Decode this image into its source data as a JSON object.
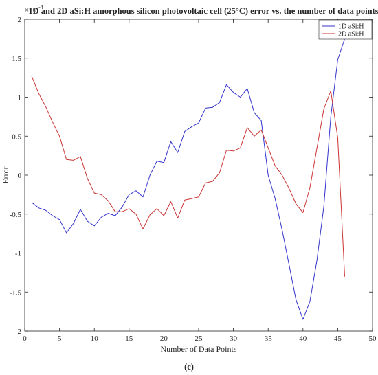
{
  "chart_data": {
    "type": "line",
    "title": "1D and 2D aSi:H amorphous silicon photovoltaic cell (25°C) error vs. the number of data points",
    "xlabel": "Number of Data Points",
    "ylabel": "Error",
    "y_multiplier_label": "×10",
    "y_multiplier_exponent": "-4",
    "xlim": [
      0,
      50
    ],
    "ylim": [
      -2,
      2
    ],
    "y_scale_factor": 0.0001,
    "xticks": [
      0,
      5,
      10,
      15,
      20,
      25,
      30,
      35,
      40,
      45,
      50
    ],
    "yticks": [
      -2,
      -1.5,
      -1,
      -0.5,
      0,
      0.5,
      1,
      1.5,
      2
    ],
    "xtick_labels": [
      "0",
      "5",
      "10",
      "15",
      "20",
      "25",
      "30",
      "35",
      "40",
      "45",
      "50"
    ],
    "ytick_labels": [
      "-2",
      "-1.5",
      "-1",
      "-0.5",
      "0",
      "0.5",
      "1",
      "1.5",
      "2"
    ],
    "grid": false,
    "legend_position": "top-right",
    "series": [
      {
        "name": "1D aSi:H",
        "color": "#3333cc",
        "x": [
          1,
          2,
          3,
          4,
          5,
          6,
          7,
          8,
          9,
          10,
          11,
          12,
          13,
          14,
          15,
          16,
          17,
          18,
          19,
          20,
          21,
          22,
          23,
          24,
          25,
          26,
          27,
          28,
          29,
          30,
          31,
          32,
          33,
          34,
          35,
          36,
          37,
          38,
          39,
          40,
          41,
          42,
          43,
          44,
          45,
          46
        ],
        "values": [
          -0.35,
          -0.42,
          -0.45,
          -0.52,
          -0.57,
          -0.74,
          -0.62,
          -0.44,
          -0.59,
          -0.65,
          -0.54,
          -0.49,
          -0.52,
          -0.41,
          -0.25,
          -0.2,
          -0.28,
          0.0,
          0.18,
          0.16,
          0.43,
          0.29,
          0.56,
          0.62,
          0.67,
          0.86,
          0.87,
          0.93,
          1.16,
          1.06,
          1.0,
          1.11,
          0.8,
          0.7,
          0.0,
          -0.3,
          -0.7,
          -1.15,
          -1.6,
          -1.85,
          -1.62,
          -1.1,
          -0.4,
          0.75,
          1.48,
          1.75
        ]
      },
      {
        "name": "2D aSi:H",
        "color": "#cc3333",
        "x": [
          1,
          2,
          3,
          4,
          5,
          6,
          7,
          8,
          9,
          10,
          11,
          12,
          13,
          14,
          15,
          16,
          17,
          18,
          19,
          20,
          21,
          22,
          23,
          24,
          25,
          26,
          27,
          28,
          29,
          30,
          31,
          32,
          33,
          34,
          35,
          36,
          37,
          38,
          39,
          40,
          41,
          42,
          43,
          44,
          45,
          46
        ],
        "values": [
          1.27,
          1.05,
          0.88,
          0.68,
          0.5,
          0.2,
          0.19,
          0.24,
          -0.04,
          -0.23,
          -0.25,
          -0.33,
          -0.47,
          -0.47,
          -0.43,
          -0.5,
          -0.69,
          -0.51,
          -0.43,
          -0.52,
          -0.34,
          -0.55,
          -0.32,
          -0.3,
          -0.28,
          -0.1,
          -0.08,
          0.03,
          0.32,
          0.31,
          0.35,
          0.61,
          0.5,
          0.58,
          0.35,
          0.12,
          0.0,
          -0.17,
          -0.37,
          -0.48,
          -0.16,
          0.34,
          0.85,
          1.08,
          0.48,
          -1.3
        ]
      }
    ],
    "panel_label": "(c)"
  }
}
